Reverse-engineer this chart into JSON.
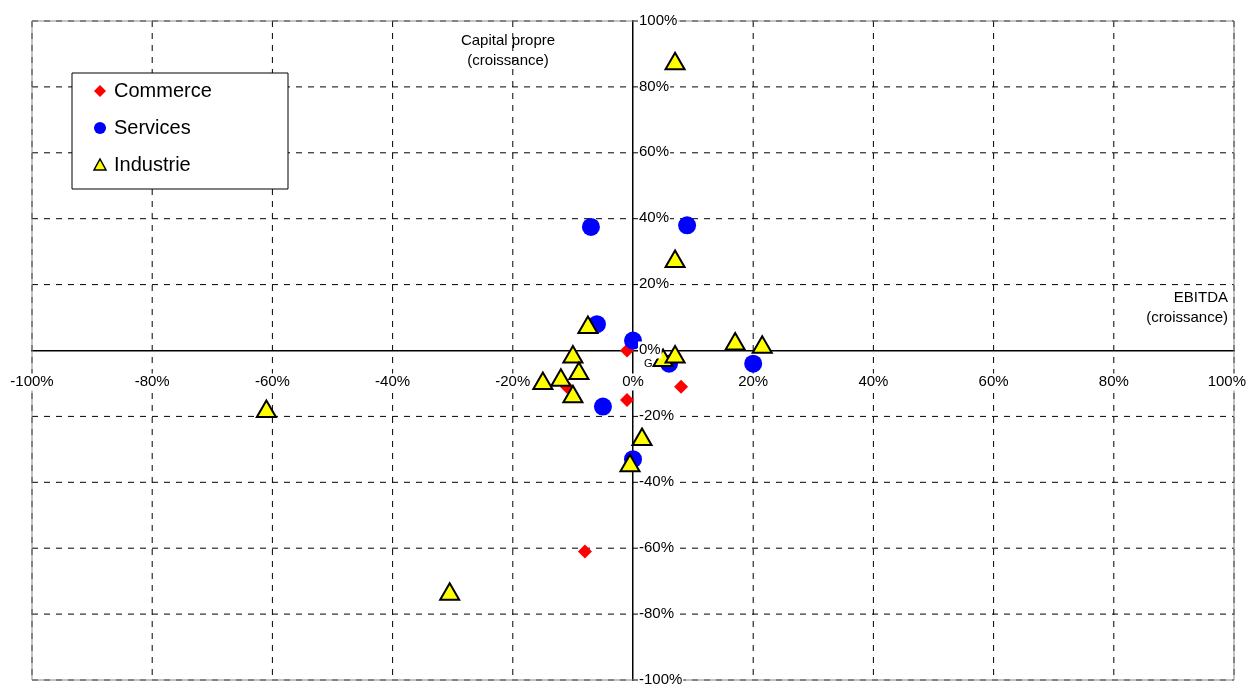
{
  "chart_data": {
    "type": "scatter",
    "xlabel": "EBITDA\n(croissance)",
    "ylabel": "Capital propre\n(croissance)",
    "xlim": [
      -100,
      100
    ],
    "ylim": [
      -100,
      100
    ],
    "xticks": [
      {
        "value": -100,
        "label": "-100%"
      },
      {
        "value": -80,
        "label": "-80%"
      },
      {
        "value": -60,
        "label": "-60%"
      },
      {
        "value": -40,
        "label": "-40%"
      },
      {
        "value": -20,
        "label": "-20%"
      },
      {
        "value": 0,
        "label": "0%"
      },
      {
        "value": 20,
        "label": "20%"
      },
      {
        "value": 40,
        "label": "40%"
      },
      {
        "value": 60,
        "label": "60%"
      },
      {
        "value": 80,
        "label": "80%"
      },
      {
        "value": 100,
        "label": "100%"
      }
    ],
    "yticks": [
      {
        "value": -100,
        "label": "-100%"
      },
      {
        "value": -80,
        "label": "-80%"
      },
      {
        "value": -60,
        "label": "-60%"
      },
      {
        "value": -40,
        "label": "-40%"
      },
      {
        "value": -20,
        "label": "-20%"
      },
      {
        "value": 0,
        "label": "0%"
      },
      {
        "value": 20,
        "label": "20%"
      },
      {
        "value": 40,
        "label": "40%"
      },
      {
        "value": 60,
        "label": "60%"
      },
      {
        "value": 80,
        "label": "80%"
      },
      {
        "value": 100,
        "label": "100%"
      }
    ],
    "grid": true,
    "legend": "top left",
    "line_style": "dashed",
    "annotations": [
      "G"
    ],
    "series": [
      {
        "name": "Commerce",
        "color": "#ff0000",
        "marker": "diamond",
        "x": [
          -1,
          -1,
          8,
          -11,
          -8
        ],
        "values": [
          0,
          -15,
          -11,
          -11,
          -61
        ]
      },
      {
        "name": "Services",
        "color": "#0000ff",
        "marker": "circle",
        "x": [
          -7,
          9,
          -6,
          0,
          6,
          20,
          -5,
          0
        ],
        "values": [
          37.5,
          38,
          8,
          3,
          -4,
          -4,
          -17,
          -33
        ]
      },
      {
        "name": "Industrie",
        "color": "#ffff00",
        "marker": "triangle",
        "x": [
          7,
          -7.5,
          -10,
          -9,
          -12,
          -15,
          -10,
          5,
          7,
          17,
          21.5,
          1.5,
          -0.5,
          7,
          -61,
          -30.5
        ],
        "values": [
          27,
          7,
          -2,
          -7,
          -9,
          -10,
          -14,
          -3,
          -2,
          2,
          1,
          -27,
          -35,
          87,
          -18.5,
          -74
        ]
      }
    ]
  }
}
